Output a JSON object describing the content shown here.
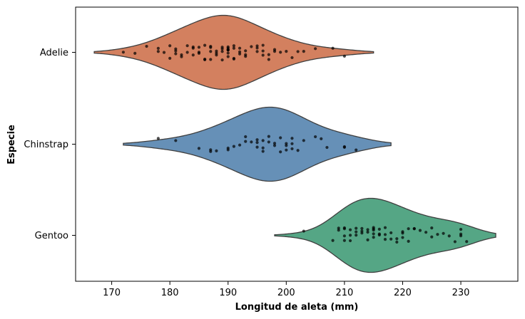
{
  "chart_data": {
    "type": "violin",
    "title": "",
    "xlabel": "Longitud de aleta (mm)",
    "ylabel": "Especie",
    "xlim": [
      163.8,
      239.8
    ],
    "xticks": [
      170,
      180,
      190,
      200,
      210,
      220,
      230
    ],
    "grid": false,
    "series": [
      {
        "name": "Adelie",
        "color": "#d3805f",
        "range": [
          167,
          215
        ],
        "points": [
          172,
          174,
          176,
          178,
          178,
          179,
          180,
          180,
          181,
          181,
          181,
          182,
          182,
          183,
          183,
          184,
          184,
          184,
          185,
          185,
          185,
          186,
          186,
          186,
          187,
          187,
          187,
          187,
          188,
          188,
          188,
          189,
          189,
          189,
          189,
          190,
          190,
          190,
          190,
          190,
          190,
          190,
          191,
          191,
          191,
          191,
          192,
          192,
          192,
          193,
          193,
          193,
          194,
          195,
          195,
          195,
          196,
          196,
          196,
          197,
          197,
          198,
          198,
          199,
          200,
          201,
          202,
          203,
          205,
          208,
          210
        ]
      },
      {
        "name": "Chinstrap",
        "color": "#6690b7",
        "range": [
          172,
          218
        ],
        "points": [
          178,
          181,
          185,
          187,
          187,
          188,
          190,
          190,
          191,
          192,
          193,
          193,
          194,
          195,
          195,
          195,
          196,
          196,
          196,
          197,
          197,
          198,
          198,
          199,
          199,
          200,
          200,
          200,
          201,
          201,
          201,
          202,
          203,
          205,
          206,
          207,
          210,
          210,
          212
        ]
      },
      {
        "name": "Gentoo",
        "color": "#55a685",
        "range": [
          198,
          236
        ],
        "points": [
          203,
          208,
          209,
          209,
          210,
          210,
          210,
          210,
          211,
          211,
          211,
          212,
          212,
          212,
          213,
          213,
          213,
          214,
          214,
          214,
          215,
          215,
          215,
          215,
          215,
          216,
          216,
          216,
          217,
          217,
          217,
          218,
          218,
          219,
          219,
          220,
          220,
          220,
          221,
          221,
          222,
          222,
          223,
          224,
          225,
          225,
          226,
          227,
          228,
          229,
          230,
          230,
          230,
          231
        ]
      }
    ]
  }
}
